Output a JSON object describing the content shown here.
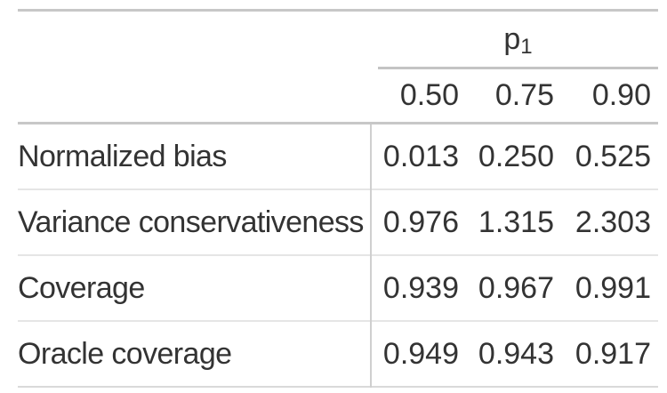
{
  "chart_data": {
    "type": "table",
    "title": "",
    "column_group_label": "p1",
    "columns": [
      "0.50",
      "0.75",
      "0.90"
    ],
    "row_labels": [
      "Normalized bias",
      "Variance conservativeness",
      "Coverage",
      "Oracle coverage"
    ],
    "rows": [
      [
        0.013,
        0.25,
        0.525
      ],
      [
        0.976,
        1.315,
        2.303
      ],
      [
        0.939,
        0.967,
        0.991
      ],
      [
        0.949,
        0.943,
        0.917
      ]
    ],
    "layout": "spanner header over three right-aligned numeric columns; row-label column separated by vertical rule"
  },
  "table": {
    "spanner": {
      "base": "p",
      "sub": "1"
    },
    "column_headers": [
      "0.50",
      "0.75",
      "0.90"
    ],
    "rows": [
      {
        "label": "Normalized bias",
        "values": [
          "0.013",
          "0.250",
          "0.525"
        ]
      },
      {
        "label": "Variance conservativeness",
        "values": [
          "0.976",
          "1.315",
          "2.303"
        ]
      },
      {
        "label": "Coverage",
        "values": [
          "0.939",
          "0.967",
          "0.991"
        ]
      },
      {
        "label": "Oracle coverage",
        "values": [
          "0.949",
          "0.943",
          "0.917"
        ]
      }
    ]
  },
  "colors": {
    "background": "#ffffff",
    "text": "#333333",
    "border_strong": "#c7c7c7",
    "border_spanner_underline": "#c4c4c4",
    "border_row_separator": "#e5e5e5",
    "border_bottom": "#d9d9d9",
    "vertical_divider": "#cfcfcf"
  }
}
